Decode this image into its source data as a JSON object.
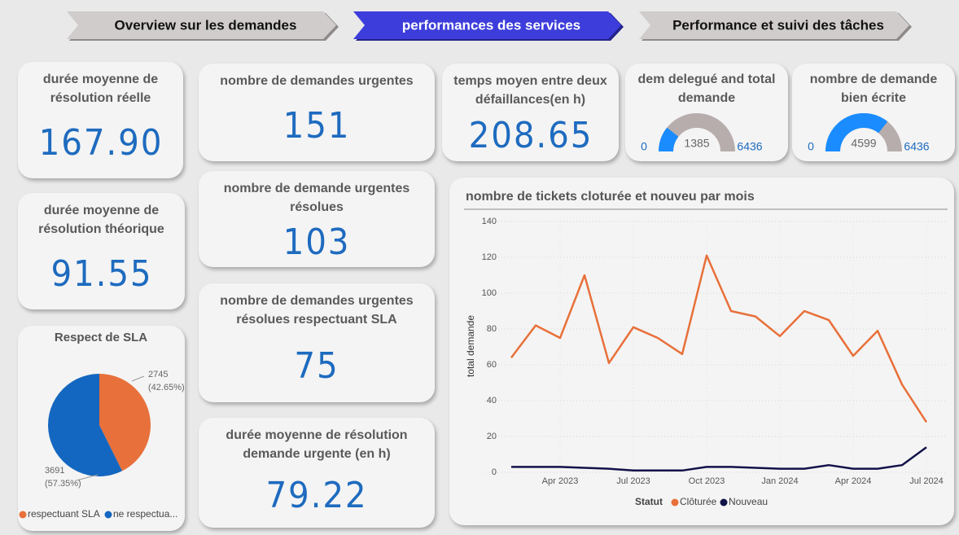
{
  "nav": {
    "tabs": [
      "Overview sur les demandes",
      "performances des services",
      "Performance et suivi des tâches"
    ],
    "active": 1
  },
  "cards": [
    {
      "label": "durée moyenne de résolution réelle",
      "value": "167.90"
    },
    {
      "label": "durée moyenne de résolution théorique",
      "value": "91.55"
    },
    {
      "label": "nombre de demandes urgentes",
      "value": "151"
    },
    {
      "label": "nombre de demande urgentes résolues",
      "value": "103"
    },
    {
      "label": "nombre de demandes urgentes résolues respectuant SLA",
      "value": "75"
    },
    {
      "label": "durée moyenne de résolution demande urgente (en h)",
      "value": "79.22"
    },
    {
      "label": "temps moyen entre deux défaillances(en h)",
      "value": "208.65"
    }
  ],
  "chart_data": [
    {
      "type": "pie",
      "title": "Respect de SLA",
      "categories": [
        "respectuant SLA",
        "ne respectua..."
      ],
      "values": [
        2745,
        3691
      ],
      "value_labels": [
        "2745",
        "3691"
      ],
      "percent_labels": [
        "(42.65%)",
        "(57.35%)"
      ],
      "colors": [
        "#e8703a",
        "#1467c0"
      ]
    },
    {
      "type": "gauge",
      "title": "dem delegué and total demande",
      "min": 0,
      "max": 6436,
      "value": 1385,
      "color": "#1a8cff",
      "track_color": "#b7adad"
    },
    {
      "type": "gauge",
      "title": "nombre de demande bien écrite",
      "min": 0,
      "max": 6436,
      "value": 4599,
      "color": "#1a8cff",
      "track_color": "#b7adad"
    },
    {
      "type": "line",
      "title": "nombre de tickets cloturée et nouveu par mois",
      "y_label": "total demande",
      "legend_title": "Statut",
      "x": [
        "2023-02",
        "2023-03",
        "2023-04",
        "2023-05",
        "2023-06",
        "2023-07",
        "2023-08",
        "2023-09",
        "2023-10",
        "2023-11",
        "2023-12",
        "2024-01",
        "2024-02",
        "2024-03",
        "2024-04",
        "2024-05",
        "2024-06",
        "2024-07"
      ],
      "series": [
        {
          "name": "Clôturée",
          "color": "#e8703a",
          "values": [
            64,
            82,
            75,
            110,
            61,
            81,
            75,
            66,
            121,
            90,
            87,
            76,
            90,
            85,
            65,
            79,
            49,
            28
          ]
        },
        {
          "name": "Nouveau",
          "color": "#12124a",
          "values": [
            3,
            3,
            3,
            2.5,
            2,
            1,
            1,
            1,
            3,
            3,
            2.5,
            2,
            2,
            4,
            2,
            2,
            4,
            14
          ]
        }
      ],
      "ylim": [
        0,
        140
      ],
      "yticks": [
        0,
        20,
        40,
        60,
        80,
        100,
        120,
        140
      ],
      "xticks": [
        {
          "value": "2023-04",
          "label": "Apr 2023"
        },
        {
          "value": "2023-07",
          "label": "Jul 2023"
        },
        {
          "value": "2023-10",
          "label": "Oct 2023"
        },
        {
          "value": "2024-01",
          "label": "Jan 2024"
        },
        {
          "value": "2024-04",
          "label": "Apr 2024"
        },
        {
          "value": "2024-07",
          "label": "Jul 2024"
        }
      ],
      "grid": true
    }
  ]
}
